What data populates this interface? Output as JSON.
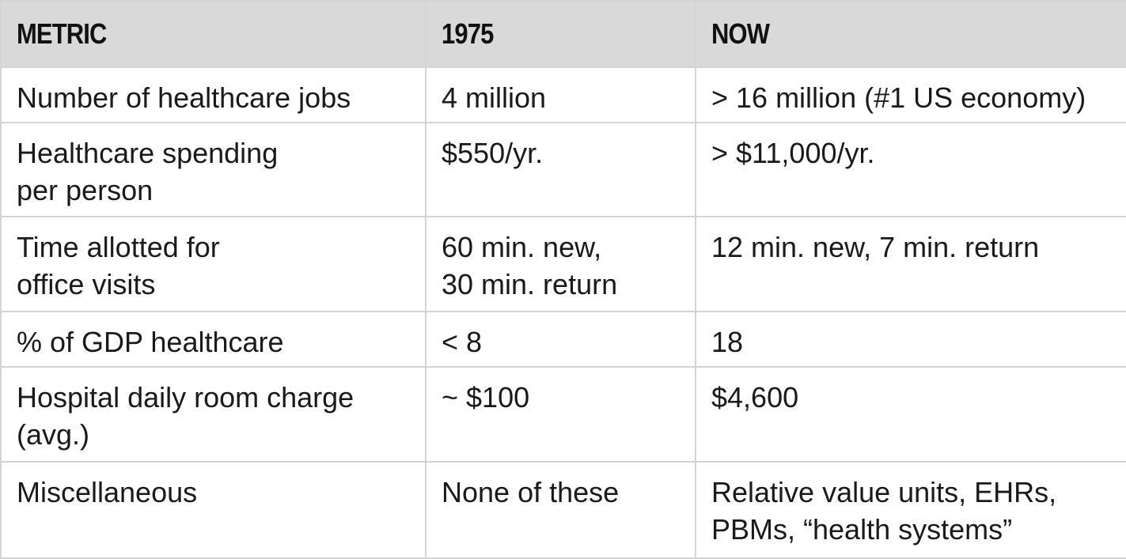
{
  "table": {
    "headers": [
      "METRIC",
      "1975",
      "NOW"
    ],
    "rows": [
      [
        "Number of healthcare jobs",
        "4 million",
        "> 16 million (#1 US economy)"
      ],
      [
        "Healthcare spending\nper person",
        "$550/yr.",
        "> $11,000/yr."
      ],
      [
        "Time allotted for\noffice visits",
        "60 min. new,\n30 min. return",
        "12 min. new, 7 min. return"
      ],
      [
        "% of GDP healthcare",
        "< 8",
        "18"
      ],
      [
        "Hospital daily room charge\n(avg.)",
        "~ $100",
        "$4,600"
      ],
      [
        "Miscellaneous",
        "None of these",
        "Relative value units, EHRs,\nPBMs, “health systems”"
      ]
    ]
  },
  "colors": {
    "header_bg": "#d9d9d9",
    "border": "#d4d4d4",
    "text": "#1a1a1a"
  }
}
